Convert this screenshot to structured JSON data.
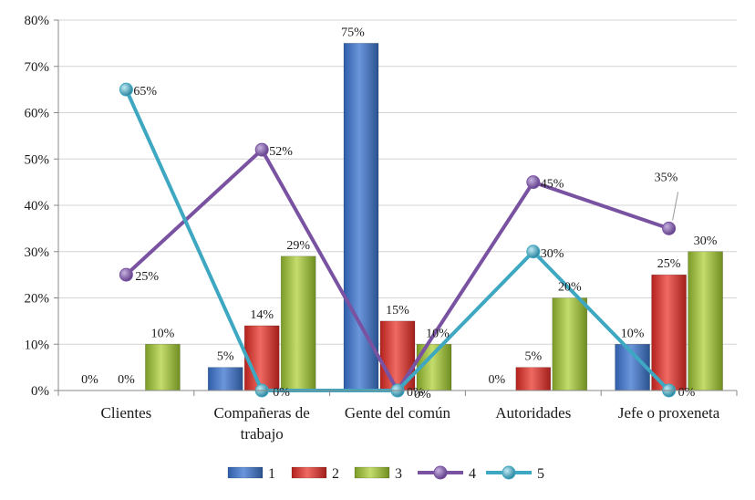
{
  "chart_data": {
    "type": "bar",
    "categories": [
      "Clientes",
      "Compañeras de trabajo",
      "Gente del común",
      "Autoridades",
      "Jefe o proxeneta"
    ],
    "category_lines": [
      [
        "Clientes"
      ],
      [
        "Compañeras de",
        "trabajo"
      ],
      [
        "Gente del común"
      ],
      [
        "Autoridades"
      ],
      [
        "Jefe o proxeneta"
      ]
    ],
    "ylim": [
      0,
      80
    ],
    "yticks": [
      "0%",
      "10%",
      "20%",
      "30%",
      "40%",
      "50%",
      "60%",
      "70%",
      "80%"
    ],
    "grid": true,
    "legend_position": "bottom",
    "series": [
      {
        "name": "1",
        "kind": "bar",
        "color": "#4472c4",
        "values": [
          0,
          5,
          75,
          0,
          10
        ],
        "labels": [
          "0%",
          "5%",
          "75%",
          "0%",
          "10%"
        ]
      },
      {
        "name": "2",
        "kind": "bar",
        "color": "#d9302b",
        "values": [
          0,
          14,
          15,
          5,
          25
        ],
        "labels": [
          "0%",
          "14%",
          "15%",
          "5%",
          "25%"
        ]
      },
      {
        "name": "3",
        "kind": "bar",
        "color": "#9bbb3b",
        "values": [
          10,
          29,
          10,
          20,
          30
        ],
        "labels": [
          "10%",
          "29%",
          "10%",
          "20%",
          "30%"
        ]
      },
      {
        "name": "4",
        "kind": "line",
        "color": "#7a52a2",
        "values": [
          25,
          52,
          0,
          45,
          35
        ],
        "labels": [
          "25%",
          "52%",
          "0%",
          "45%",
          "35%"
        ]
      },
      {
        "name": "5",
        "kind": "line",
        "color": "#3ea8c2",
        "values": [
          65,
          0,
          0,
          30,
          0
        ],
        "labels": [
          "65%",
          "0%",
          "0%",
          "30%",
          "0%"
        ]
      }
    ]
  }
}
